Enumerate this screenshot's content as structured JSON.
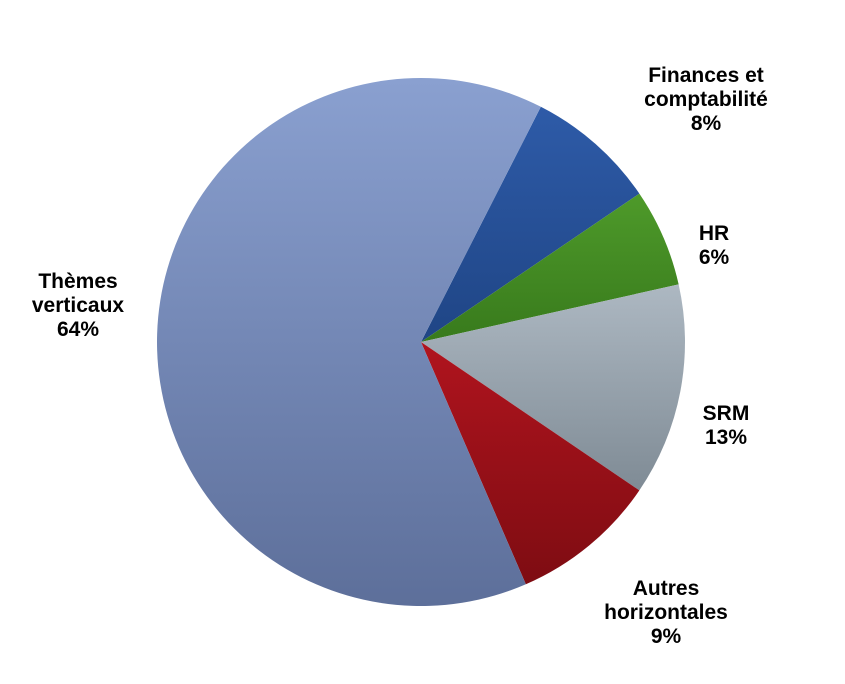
{
  "chart_data": {
    "type": "pie",
    "title": "",
    "slices": [
      {
        "label_lines": [
          "Finances et",
          "comptabilité"
        ],
        "percent_label": "8%",
        "value": 8,
        "color": "#2e5ba8",
        "color_dark": "#1f4585"
      },
      {
        "label_lines": [
          "HR"
        ],
        "percent_label": "6%",
        "value": 6,
        "color": "#4e9a2a",
        "color_dark": "#387a1c"
      },
      {
        "label_lines": [
          "SRM"
        ],
        "percent_label": "13%",
        "value": 13,
        "color": "#adb8c2",
        "color_dark": "#7f8b95"
      },
      {
        "label_lines": [
          "Autres",
          "horizontales"
        ],
        "percent_label": "9%",
        "value": 9,
        "color": "#b0141e",
        "color_dark": "#7e0c12"
      },
      {
        "label_lines": [
          "Thèmes",
          "verticaux"
        ],
        "percent_label": "64%",
        "value": 64,
        "color": "#8aa0d0",
        "color_dark": "#5d6f9a"
      }
    ]
  }
}
